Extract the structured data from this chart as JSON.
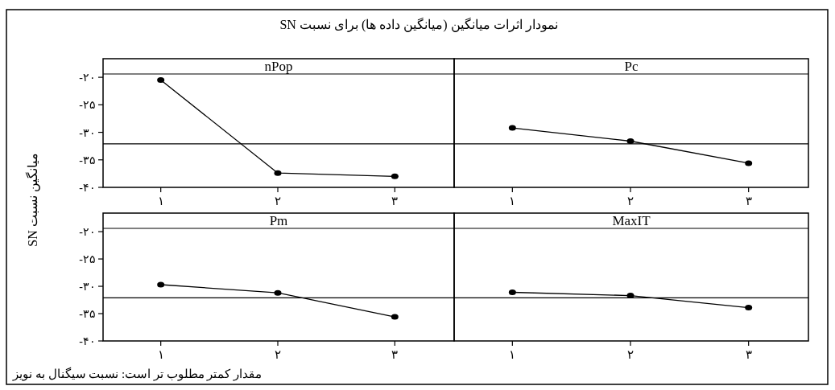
{
  "chart_data": [
    {
      "type": "line",
      "title": "nPop",
      "ylabel": "میانگین نسبت SN",
      "annotations": [
        "نمودار اثرات میانگین (میانگین داده ها) برای نسبت SN",
        "مقدار کمتر مطلوب تر است: نسبت سیگنال به نویز"
      ],
      "categories": [
        "۱",
        "۲",
        "۳"
      ],
      "series": [
        {
          "color": "#000000",
          "values": [
            -20.5,
            -37.4,
            -38.0
          ]
        }
      ],
      "ylim": [
        -40,
        -19.4
      ],
      "yticks": [
        {
          "value": -20,
          "label": "-۲۰"
        },
        {
          "value": -25,
          "label": "-۲۵"
        },
        {
          "value": -30,
          "label": "-۳۰"
        },
        {
          "value": -35,
          "label": "-۳۵"
        },
        {
          "value": -40,
          "label": "-۴۰"
        }
      ],
      "ref_lines": [
        {
          "axis": "y",
          "value": -32.1,
          "color": "#000000"
        }
      ],
      "marker": "circle",
      "line_style": "solid",
      "grid": false
    },
    {
      "type": "line",
      "title": "Pc",
      "categories": [
        "۱",
        "۲",
        "۳"
      ],
      "series": [
        {
          "color": "#000000",
          "values": [
            -29.2,
            -31.6,
            -35.6
          ]
        }
      ],
      "ylim": [
        -40,
        -19.4
      ],
      "ref_lines": [
        {
          "axis": "y",
          "value": -32.1,
          "color": "#000000"
        }
      ],
      "marker": "circle",
      "line_style": "solid",
      "grid": false,
      "tick_labels": "x"
    },
    {
      "type": "line",
      "title": "Pm",
      "categories": [
        "۱",
        "۲",
        "۳"
      ],
      "series": [
        {
          "color": "#000000",
          "values": [
            -29.7,
            -31.2,
            -35.6
          ]
        }
      ],
      "ylim": [
        -40,
        -19.4
      ],
      "yticks": [
        {
          "value": -20,
          "label": "-۲۰"
        },
        {
          "value": -25,
          "label": "-۲۵"
        },
        {
          "value": -30,
          "label": "-۳۰"
        },
        {
          "value": -35,
          "label": "-۳۵"
        },
        {
          "value": -40,
          "label": "-۴۰"
        }
      ],
      "ref_lines": [
        {
          "axis": "y",
          "value": -32.1,
          "color": "#000000"
        }
      ],
      "marker": "circle",
      "line_style": "solid",
      "grid": false
    },
    {
      "type": "line",
      "title": "MaxIT",
      "categories": [
        "۱",
        "۲",
        "۳"
      ],
      "series": [
        {
          "color": "#000000",
          "values": [
            -31.1,
            -31.7,
            -33.9
          ]
        }
      ],
      "ylim": [
        -40,
        -19.4
      ],
      "ref_lines": [
        {
          "axis": "y",
          "value": -32.1,
          "color": "#000000"
        }
      ],
      "marker": "circle",
      "line_style": "solid",
      "grid": false,
      "tick_labels": "x"
    }
  ]
}
